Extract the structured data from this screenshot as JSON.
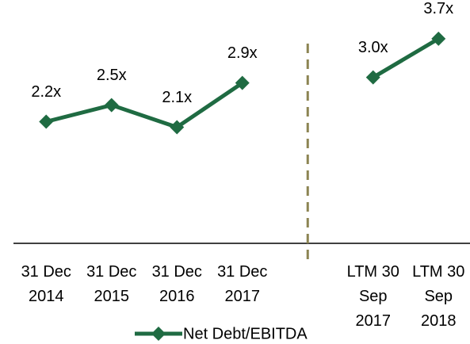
{
  "chart_data": {
    "type": "line",
    "categories": [
      "31 Dec 2014",
      "31 Dec 2015",
      "31 Dec 2016",
      "31 Dec 2017",
      null,
      "LTM 30 Sep 2017",
      "LTM 30 Sep 2018"
    ],
    "series": [
      {
        "name": "Net Debt/EBITDA",
        "color": "#1f6b42",
        "values": [
          2.2,
          2.5,
          2.1,
          2.9,
          null,
          3.0,
          3.7
        ],
        "value_labels": [
          "2.2x",
          "2.5x",
          "2.1x",
          "2.9x",
          null,
          "3.0x",
          "3.7x"
        ]
      }
    ],
    "ylim": [
      0,
      4.4
    ],
    "legend": "bottom"
  }
}
